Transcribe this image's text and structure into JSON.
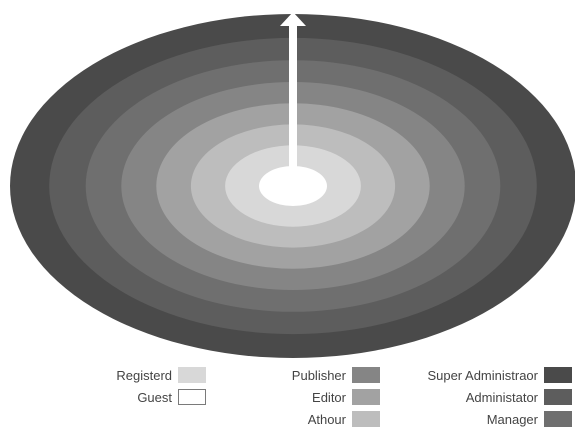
{
  "diagram": {
    "rings_outer_to_inner": [
      {
        "level": "Super Administraor",
        "color": "#4a4a4a"
      },
      {
        "level": "Administator",
        "color": "#5d5d5d"
      },
      {
        "level": "Manager",
        "color": "#6f6f6f"
      },
      {
        "level": "Publisher",
        "color": "#858585"
      },
      {
        "level": "Editor",
        "color": "#a2a2a2"
      },
      {
        "level": "Athour",
        "color": "#bdbdbd"
      },
      {
        "level": "Registerd",
        "color": "#d8d8d8"
      },
      {
        "level": "Guest",
        "color": "#ffffff"
      }
    ],
    "arrow": {
      "icon": "up-arrow-icon",
      "color": "#ffffff"
    }
  },
  "legend": {
    "columns": [
      {
        "items": [
          {
            "label": "Registerd",
            "color": "#d8d8d8"
          },
          {
            "label": "Guest",
            "color": "#ffffff"
          }
        ]
      },
      {
        "items": [
          {
            "label": "Publisher",
            "color": "#858585"
          },
          {
            "label": "Editor",
            "color": "#a2a2a2"
          },
          {
            "label": "Athour",
            "color": "#bdbdbd"
          }
        ]
      },
      {
        "items": [
          {
            "label": "Super Administraor",
            "color": "#4a4a4a"
          },
          {
            "label": "Administator",
            "color": "#5d5d5d"
          },
          {
            "label": "Manager",
            "color": "#6f6f6f"
          }
        ]
      }
    ]
  }
}
